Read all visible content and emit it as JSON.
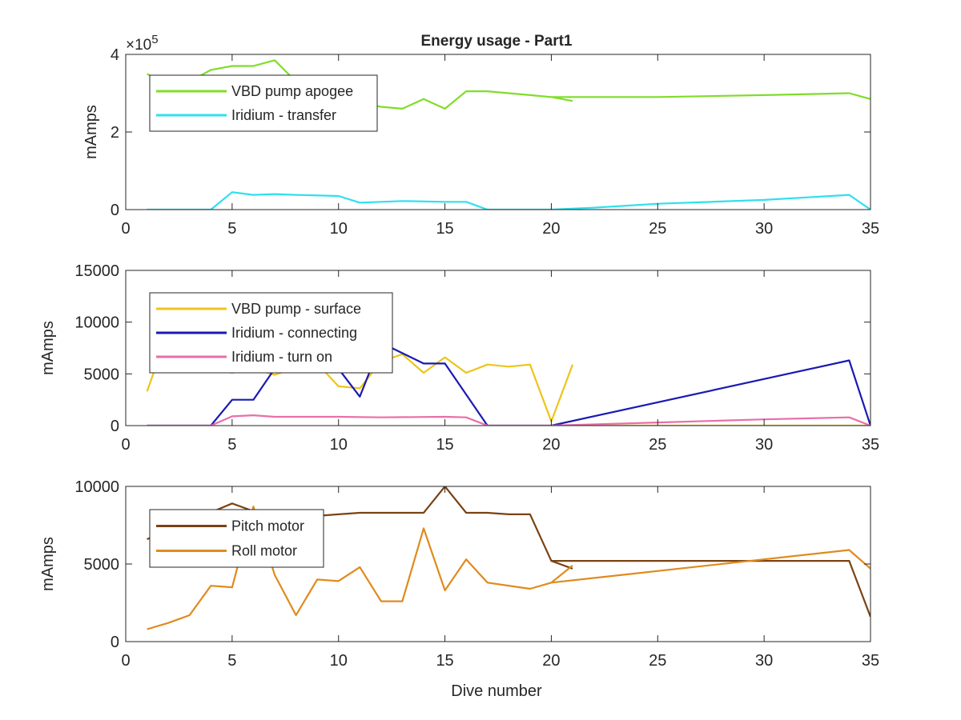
{
  "figure": {
    "title": "Energy usage - Part1",
    "xlabel": "Dive number"
  },
  "chart_data": [
    {
      "type": "line",
      "title": "Energy usage - Part1",
      "xlabel": "",
      "ylabel": "mAmps",
      "xlim": [
        0,
        35
      ],
      "ylim": [
        0,
        4
      ],
      "y_exponent_label": "×10",
      "y_exponent_power": "5",
      "xticks": [
        0,
        5,
        10,
        15,
        20,
        25,
        30,
        35
      ],
      "yticks": [
        0,
        2,
        4
      ],
      "grid": false,
      "legend_position": "top-left",
      "series": [
        {
          "name": "VBD pump apogee",
          "color": "#7fdd2a",
          "x": [
            1,
            2,
            3,
            4,
            5,
            6,
            7,
            8,
            9,
            10,
            11,
            12,
            13,
            14,
            15,
            16,
            17,
            18,
            19,
            20,
            21
          ],
          "y": [
            3.5,
            3.2,
            3.3,
            3.6,
            3.7,
            3.7,
            3.85,
            3.3,
            3.1,
            2.9,
            2.75,
            2.65,
            2.6,
            2.85,
            2.6,
            3.05,
            3.05,
            3.0,
            2.95,
            2.9,
            2.8
          ]
        },
        {
          "name": "",
          "color": "#7fdd2a",
          "x": [
            20,
            25,
            30,
            34,
            35
          ],
          "y": [
            2.9,
            2.9,
            2.95,
            3.0,
            2.85
          ]
        },
        {
          "name": "Iridium - transfer",
          "color": "#2ee0ee",
          "x": [
            1,
            4,
            5,
            6,
            7,
            8,
            10,
            11,
            13,
            15,
            16,
            17,
            20,
            22,
            25,
            30,
            34,
            35
          ],
          "y": [
            0,
            0,
            0.45,
            0.38,
            0.4,
            0.38,
            0.35,
            0.18,
            0.22,
            0.2,
            0.2,
            0,
            0,
            0.05,
            0.15,
            0.25,
            0.38,
            0
          ]
        }
      ]
    },
    {
      "type": "line",
      "title": "",
      "xlabel": "",
      "ylabel": "mAmps",
      "xlim": [
        0,
        35
      ],
      "ylim": [
        0,
        15000
      ],
      "xticks": [
        0,
        5,
        10,
        15,
        20,
        25,
        30,
        35
      ],
      "yticks": [
        0,
        5000,
        10000,
        15000
      ],
      "grid": false,
      "legend_position": "top-left",
      "series": [
        {
          "name": "VBD pump - surface",
          "color": "#edc41a",
          "x": [
            1,
            1.5,
            5,
            6,
            7,
            8,
            9,
            10,
            11,
            12,
            13,
            14,
            15,
            16,
            17,
            18,
            19,
            20,
            21
          ],
          "y": [
            3300,
            6200,
            5100,
            5500,
            4900,
            5600,
            6000,
            3800,
            3600,
            6200,
            6900,
            5100,
            6600,
            5100,
            5900,
            5700,
            5900,
            400,
            5900
          ]
        },
        {
          "name": "",
          "color": "#edc41a",
          "x": [
            20,
            35
          ],
          "y": [
            0,
            0
          ]
        },
        {
          "name": "Iridium - connecting",
          "color": "#1a1ab3",
          "x": [
            1,
            4,
            5,
            6,
            7,
            9,
            10,
            11,
            12,
            14,
            15,
            17,
            20,
            34,
            35
          ],
          "y": [
            0,
            0,
            2500,
            2500,
            5500,
            7000,
            5500,
            2800,
            8000,
            6000,
            6000,
            0,
            0,
            6300,
            0
          ]
        },
        {
          "name": "Iridium - turn on",
          "color": "#e86fa8",
          "x": [
            1,
            4,
            5,
            6,
            7,
            10,
            12,
            15,
            16,
            17,
            20,
            25,
            30,
            34,
            35
          ],
          "y": [
            0,
            0,
            900,
            1000,
            850,
            850,
            800,
            850,
            800,
            0,
            0,
            300,
            600,
            800,
            0
          ]
        }
      ]
    },
    {
      "type": "line",
      "title": "",
      "xlabel": "Dive number",
      "ylabel": "mAmps",
      "xlim": [
        0,
        35
      ],
      "ylim": [
        0,
        10000
      ],
      "xticks": [
        0,
        5,
        10,
        15,
        20,
        25,
        30,
        35
      ],
      "yticks": [
        0,
        5000,
        10000
      ],
      "grid": false,
      "legend_position": "top-left",
      "series": [
        {
          "name": "Pitch motor",
          "color": "#7a4312",
          "x": [
            1,
            5,
            6,
            7,
            8,
            9,
            10,
            11,
            12,
            13,
            14,
            15,
            16,
            17,
            18,
            19,
            20,
            21
          ],
          "y": [
            6600,
            8900,
            8400,
            8200,
            8100,
            8100,
            8200,
            8300,
            8300,
            8300,
            8300,
            10000,
            8300,
            8300,
            8200,
            8200,
            5200,
            4700
          ]
        },
        {
          "name": "",
          "color": "#7a4312",
          "x": [
            20,
            34,
            35
          ],
          "y": [
            5200,
            5200,
            1600
          ]
        },
        {
          "name": "Roll motor",
          "color": "#e08a1e",
          "x": [
            1,
            2,
            3,
            4,
            5,
            6,
            7,
            8,
            9,
            10,
            11,
            12,
            13,
            14,
            15,
            16,
            17,
            19,
            20,
            21
          ],
          "y": [
            800,
            1200,
            1700,
            3600,
            3500,
            8700,
            4300,
            1700,
            4000,
            3900,
            4800,
            2600,
            2600,
            7300,
            3300,
            5300,
            3800,
            3400,
            3800,
            4900
          ]
        },
        {
          "name": "",
          "color": "#e08a1e",
          "x": [
            20,
            34,
            35
          ],
          "y": [
            3800,
            5900,
            4700
          ]
        }
      ]
    }
  ]
}
